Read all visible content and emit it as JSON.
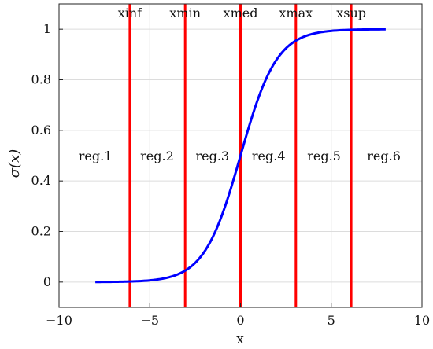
{
  "chart_data": {
    "type": "line",
    "xlabel": "x",
    "ylabel": "σ(x)",
    "xlim": [
      -10,
      10
    ],
    "ylim": [
      -0.1,
      1.1
    ],
    "grid": true,
    "x_ticks": [
      -10,
      -5,
      0,
      5,
      10
    ],
    "x_tick_labels": [
      "−10",
      "−5",
      "0",
      "5",
      "10"
    ],
    "y_ticks": [
      0,
      0.2,
      0.4,
      0.6,
      0.8,
      1
    ],
    "y_tick_labels": [
      "0",
      "0.2",
      "0.4",
      "0.6",
      "0.8",
      "1"
    ],
    "series": [
      {
        "function": "logistic",
        "color": "#0000ff",
        "x": [
          -8,
          -7,
          -6,
          -5,
          -4,
          -3.5,
          -3,
          -2.5,
          -2,
          -1.5,
          -1,
          -0.5,
          0,
          0.5,
          1,
          1.5,
          2,
          2.5,
          3,
          3.5,
          4,
          5,
          6,
          7,
          8
        ],
        "values": [
          0.0003,
          0.0009,
          0.0025,
          0.0067,
          0.018,
          0.0293,
          0.0474,
          0.0759,
          0.1192,
          0.1824,
          0.2689,
          0.3775,
          0.5,
          0.6225,
          0.7311,
          0.8176,
          0.8808,
          0.9241,
          0.9526,
          0.9707,
          0.982,
          0.9933,
          0.9975,
          0.9991,
          0.9997
        ]
      }
    ],
    "vertical_lines": [
      {
        "label": "xinf",
        "x": -6.1
      },
      {
        "label": "xmin",
        "x": -3.05
      },
      {
        "label": "xmed",
        "x": 0
      },
      {
        "label": "xmax",
        "x": 3.05
      },
      {
        "label": "xsup",
        "x": 6.1
      }
    ],
    "vertical_line_color": "#ff0000",
    "regions": [
      {
        "label": "reg.1",
        "x": -8,
        "y": 0.5
      },
      {
        "label": "reg.2",
        "x": -4.6,
        "y": 0.5
      },
      {
        "label": "reg.3",
        "x": -1.55,
        "y": 0.5
      },
      {
        "label": "reg.4",
        "x": 1.55,
        "y": 0.5
      },
      {
        "label": "reg.5",
        "x": 4.6,
        "y": 0.5
      },
      {
        "label": "reg.6",
        "x": 7.9,
        "y": 0.5
      }
    ]
  }
}
